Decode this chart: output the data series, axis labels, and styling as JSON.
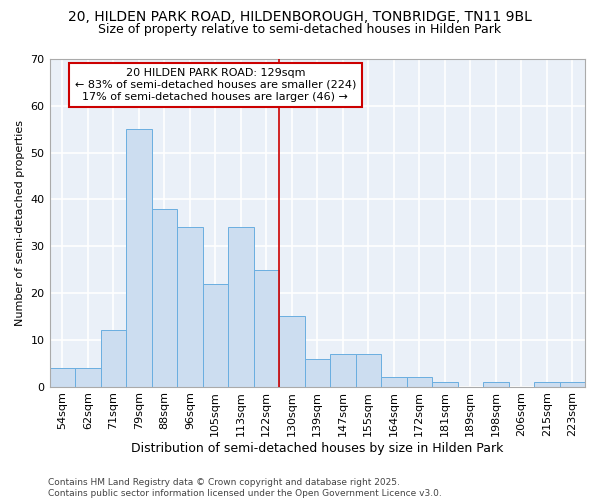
{
  "title_line1": "20, HILDEN PARK ROAD, HILDENBOROUGH, TONBRIDGE, TN11 9BL",
  "title_line2": "Size of property relative to semi-detached houses in Hilden Park",
  "xlabel": "Distribution of semi-detached houses by size in Hilden Park",
  "ylabel": "Number of semi-detached properties",
  "bar_color": "#ccddf0",
  "bar_edge_color": "#6aaee0",
  "background_color": "#eaf0f8",
  "fig_background_color": "#ffffff",
  "grid_color": "#ffffff",
  "categories": [
    "54sqm",
    "62sqm",
    "71sqm",
    "79sqm",
    "88sqm",
    "96sqm",
    "105sqm",
    "113sqm",
    "122sqm",
    "130sqm",
    "139sqm",
    "147sqm",
    "155sqm",
    "164sqm",
    "172sqm",
    "181sqm",
    "189sqm",
    "198sqm",
    "206sqm",
    "215sqm",
    "223sqm"
  ],
  "values": [
    4,
    4,
    12,
    55,
    38,
    34,
    22,
    34,
    25,
    15,
    6,
    7,
    7,
    2,
    2,
    1,
    0,
    1,
    0,
    1,
    1
  ],
  "ylim": [
    0,
    70
  ],
  "yticks": [
    0,
    10,
    20,
    30,
    40,
    50,
    60,
    70
  ],
  "property_label": "20 HILDEN PARK ROAD: 129sqm",
  "pct_smaller": 83,
  "n_smaller": 224,
  "pct_larger": 17,
  "n_larger": 46,
  "vline_bin_index": 9.0,
  "annotation_box_color": "#ffffff",
  "annotation_box_edge": "#cc0000",
  "vline_color": "#cc0000",
  "footer_text": "Contains HM Land Registry data © Crown copyright and database right 2025.\nContains public sector information licensed under the Open Government Licence v3.0.",
  "title_fontsize": 10,
  "subtitle_fontsize": 9,
  "axis_label_fontsize": 9,
  "tick_fontsize": 8,
  "annotation_fontsize": 8,
  "ylabel_fontsize": 8
}
